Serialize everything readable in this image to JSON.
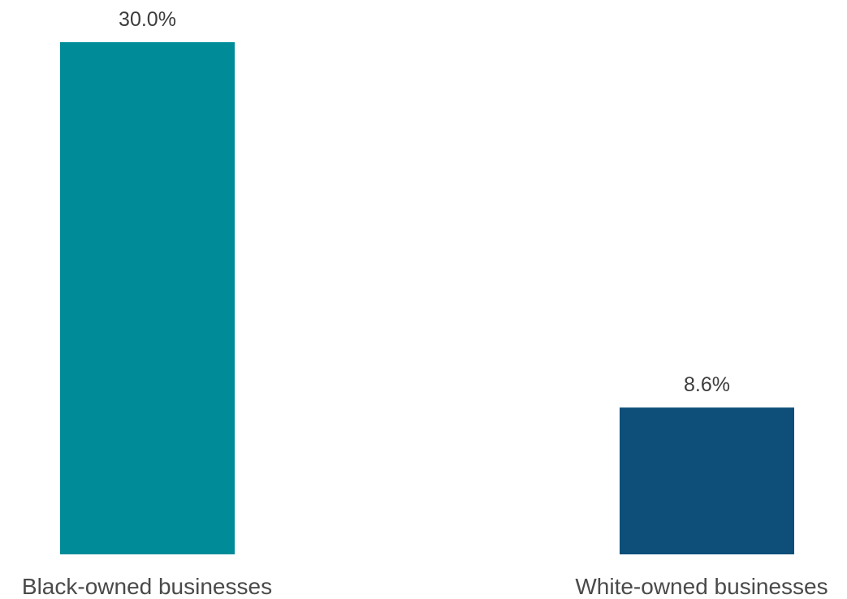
{
  "chart_data": {
    "type": "bar",
    "categories": [
      "Black-owned businesses",
      "White-owned businesses"
    ],
    "values": [
      30.0,
      8.6
    ],
    "data_labels": [
      "30.0%",
      "8.6%"
    ],
    "colors": [
      "#008b99",
      "#0d4f78"
    ],
    "ylim": [
      0,
      30
    ],
    "grid": false,
    "legend": "none"
  }
}
